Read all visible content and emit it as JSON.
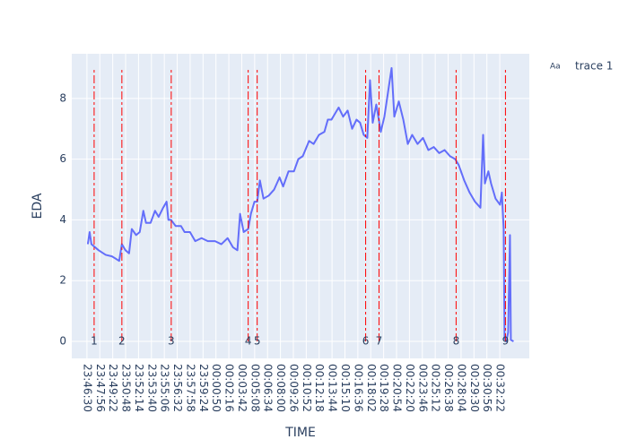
{
  "chart_data": {
    "type": "line",
    "x_label": "TIME",
    "y_label": "EDA",
    "xlim": [
      "23:44:49",
      "00:35:39"
    ],
    "ylim": [
      -0.56,
      9.47
    ],
    "yticks": [
      0,
      2,
      4,
      6,
      8
    ],
    "xticks": [
      "23:46:30",
      "23:47:56",
      "23:49:22",
      "23:50:48",
      "23:52:14",
      "23:53:40",
      "23:55:06",
      "23:56:32",
      "23:57:58",
      "23:59:24",
      "00:00:50",
      "00:02:16",
      "00:03:42",
      "00:05:08",
      "00:06:34",
      "00:08:00",
      "00:09:26",
      "00:10:52",
      "00:12:18",
      "00:13:44",
      "00:15:10",
      "00:16:36",
      "00:18:02",
      "00:19:28",
      "00:20:54",
      "00:22:20",
      "00:23:46",
      "00:25:12",
      "00:26:38",
      "00:28:04",
      "00:29:30",
      "00:30:56",
      "00:32:22"
    ],
    "grid": true,
    "legend_symbol": "Aa",
    "legend_name": "trace 1",
    "vline_color": "#ff0000",
    "vlines": [
      {
        "x": "23:47:18",
        "label": "1"
      },
      {
        "x": "23:50:23",
        "label": "2"
      },
      {
        "x": "23:55:52",
        "label": "3"
      },
      {
        "x": "00:04:25",
        "label": "4"
      },
      {
        "x": "00:05:25",
        "label": "5"
      },
      {
        "x": "00:17:28",
        "label": "6"
      },
      {
        "x": "00:18:57",
        "label": "7"
      },
      {
        "x": "00:27:31",
        "label": "8"
      },
      {
        "x": "00:33:00",
        "label": "9"
      }
    ],
    "series": [
      {
        "color": "#636efa",
        "x": [
          "23:46:36",
          "23:46:48",
          "23:47:00",
          "23:47:48",
          "23:48:35",
          "23:49:17",
          "23:50:05",
          "23:50:23",
          "23:50:47",
          "23:51:11",
          "23:51:29",
          "23:51:58",
          "23:52:22",
          "23:52:46",
          "23:53:04",
          "23:53:34",
          "23:54:04",
          "23:54:28",
          "23:54:58",
          "23:55:21",
          "23:55:33",
          "23:55:51",
          "23:56:21",
          "23:56:57",
          "23:57:21",
          "23:57:57",
          "23:58:32",
          "23:59:14",
          "23:59:56",
          "00:00:44",
          "00:01:26",
          "00:02:08",
          "00:02:43",
          "00:03:13",
          "00:03:31",
          "00:03:55",
          "00:04:25",
          "00:04:43",
          "00:05:07",
          "00:05:25",
          "00:05:43",
          "00:06:07",
          "00:06:42",
          "00:07:18",
          "00:07:54",
          "00:08:18",
          "00:08:54",
          "00:09:30",
          "00:09:59",
          "00:10:29",
          "00:11:11",
          "00:11:41",
          "00:12:17",
          "00:12:53",
          "00:13:16",
          "00:13:40",
          "00:14:04",
          "00:14:28",
          "00:14:58",
          "00:15:28",
          "00:15:58",
          "00:16:27",
          "00:16:51",
          "00:17:15",
          "00:17:39",
          "00:17:57",
          "00:18:15",
          "00:18:39",
          "00:19:09",
          "00:19:33",
          "00:19:57",
          "00:20:21",
          "00:20:39",
          "00:21:09",
          "00:21:39",
          "00:22:09",
          "00:22:38",
          "00:23:14",
          "00:23:50",
          "00:24:26",
          "00:25:02",
          "00:25:38",
          "00:26:14",
          "00:26:50",
          "00:27:25",
          "00:27:49",
          "00:28:25",
          "00:29:01",
          "00:29:37",
          "00:30:13",
          "00:30:31",
          "00:30:43",
          "00:31:06",
          "00:31:24",
          "00:31:54",
          "00:32:24",
          "00:32:36",
          "00:32:48",
          "00:32:54",
          "00:33:06",
          "00:33:18",
          "00:33:30",
          "00:33:36",
          "00:33:54"
        ],
        "values": [
          3.2,
          3.6,
          3.2,
          3.0,
          2.85,
          2.8,
          2.65,
          3.2,
          3.0,
          2.9,
          3.7,
          3.5,
          3.6,
          4.3,
          3.9,
          3.9,
          4.3,
          4.1,
          4.4,
          4.6,
          4.0,
          4.0,
          3.8,
          3.8,
          3.6,
          3.6,
          3.3,
          3.4,
          3.3,
          3.3,
          3.2,
          3.4,
          3.1,
          3.0,
          4.2,
          3.6,
          3.7,
          4.2,
          4.6,
          4.6,
          5.3,
          4.7,
          4.8,
          5.0,
          5.4,
          5.1,
          5.6,
          5.6,
          6.0,
          6.1,
          6.6,
          6.5,
          6.8,
          6.9,
          7.3,
          7.3,
          7.5,
          7.7,
          7.4,
          7.6,
          7.0,
          7.3,
          7.2,
          6.8,
          6.7,
          8.6,
          7.2,
          7.8,
          6.9,
          7.4,
          8.2,
          9.0,
          7.4,
          7.9,
          7.3,
          6.5,
          6.8,
          6.5,
          6.7,
          6.3,
          6.4,
          6.2,
          6.3,
          6.1,
          6.0,
          5.8,
          5.3,
          4.9,
          4.6,
          4.4,
          6.8,
          5.2,
          5.6,
          5.2,
          4.7,
          4.5,
          4.9,
          3.7,
          0.1,
          0.0,
          0.3,
          3.5,
          0.05,
          0.0
        ]
      }
    ]
  }
}
